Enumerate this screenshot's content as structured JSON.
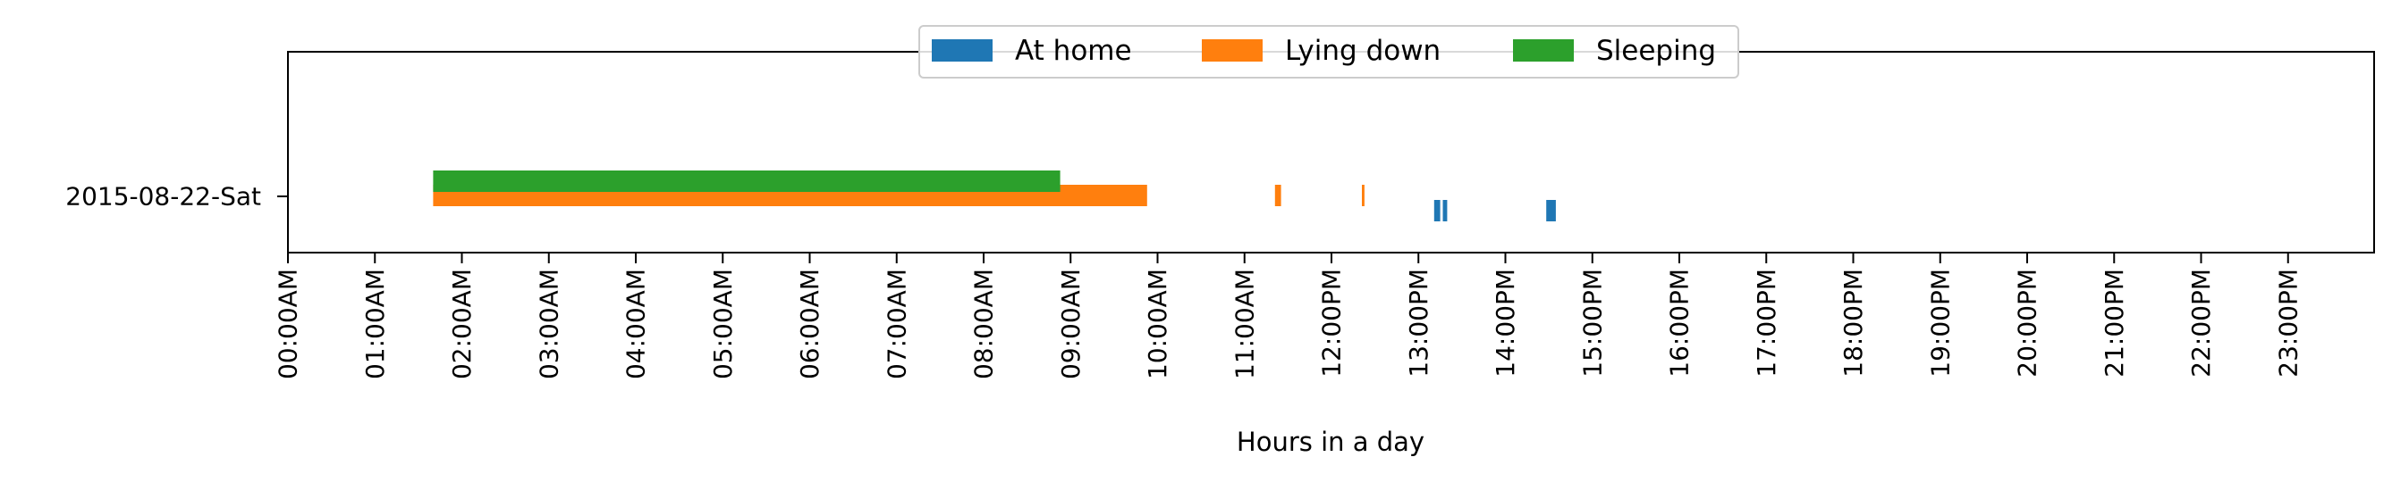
{
  "chart_data": {
    "type": "timeline",
    "xlabel": "Hours in a day",
    "x_unit": "hour",
    "xlim": [
      0,
      24
    ],
    "x_ticks": [
      "00:00AM",
      "01:00AM",
      "02:00AM",
      "03:00AM",
      "04:00AM",
      "05:00AM",
      "06:00AM",
      "07:00AM",
      "08:00AM",
      "09:00AM",
      "10:00AM",
      "11:00AM",
      "12:00PM",
      "13:00PM",
      "14:00PM",
      "15:00PM",
      "16:00PM",
      "17:00PM",
      "18:00PM",
      "19:00PM",
      "20:00PM",
      "21:00PM",
      "22:00PM",
      "23:00PM"
    ],
    "categories": [
      "2015-08-22-Sat"
    ],
    "legend_position": "top-center",
    "grid": false,
    "series": [
      {
        "name": "At home",
        "color": "#1f77b4",
        "intervals": [
          [
            13.18,
            13.25
          ],
          [
            13.28,
            13.33
          ],
          [
            14.47,
            14.58
          ]
        ]
      },
      {
        "name": "Lying down",
        "color": "#ff7f0e",
        "intervals": [
          [
            1.67,
            9.88
          ],
          [
            11.35,
            11.42
          ],
          [
            12.35,
            12.38
          ]
        ]
      },
      {
        "name": "Sleeping",
        "color": "#2ca02c",
        "intervals": [
          [
            1.67,
            8.88
          ]
        ]
      }
    ]
  }
}
